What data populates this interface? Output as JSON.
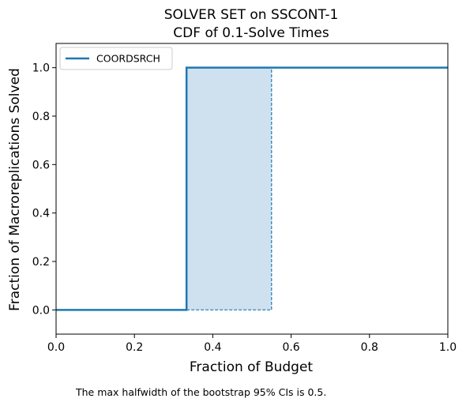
{
  "chart_data": {
    "type": "line",
    "title": "SOLVER SET on SSCONT-1",
    "subtitle": "CDF of 0.1-Solve Times",
    "xlabel": "Fraction of Budget",
    "ylabel": "Fraction of Macroreplications Solved",
    "xlim": [
      0.0,
      1.0
    ],
    "ylim": [
      -0.1,
      1.1
    ],
    "xticks": [
      0.0,
      0.2,
      0.4,
      0.6,
      0.8,
      1.0
    ],
    "xtick_labels": [
      "0.0",
      "0.2",
      "0.4",
      "0.6",
      "0.8",
      "1.0"
    ],
    "yticks": [
      0.0,
      0.2,
      0.4,
      0.6,
      0.8,
      1.0
    ],
    "ytick_labels": [
      "0.0",
      "0.2",
      "0.4",
      "0.6",
      "0.8",
      "1.0"
    ],
    "grid": false,
    "legend_position": "top-left",
    "series": [
      {
        "name": "COORDSRCH",
        "color": "#1f77b4",
        "step_x": [
          0.0,
          0.333,
          0.333,
          1.0
        ],
        "step_y": [
          0.0,
          0.0,
          1.0,
          1.0
        ],
        "ci_band": {
          "x": [
            0.333,
            0.55
          ],
          "lower": [
            0.0,
            0.0
          ],
          "upper": [
            1.0,
            1.0
          ],
          "fill": "#cfe1ef"
        }
      }
    ],
    "footnote": "The max halfwidth of the bootstrap 95% CIs is 0.5."
  }
}
